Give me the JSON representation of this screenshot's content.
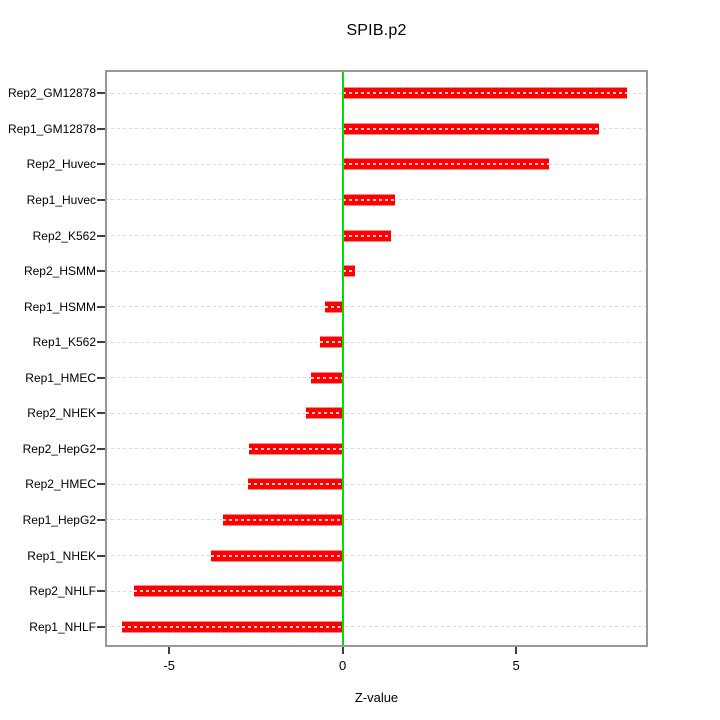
{
  "chart_data": {
    "type": "bar",
    "orientation": "horizontal",
    "title": "SPIB.p2",
    "xlabel": "Z-value",
    "ylabel": "",
    "categories": [
      "Rep2_GM12878",
      "Rep1_GM12878",
      "Rep2_Huvec",
      "Rep1_Huvec",
      "Rep2_K562",
      "Rep2_HSMM",
      "Rep1_HSMM",
      "Rep1_K562",
      "Rep1_HMEC",
      "Rep2_NHEK",
      "Rep2_HepG2",
      "Rep2_HMEC",
      "Rep1_HepG2",
      "Rep1_NHEK",
      "Rep2_NHLF",
      "Rep1_NHLF"
    ],
    "values": [
      8.2,
      7.4,
      5.95,
      1.5,
      1.4,
      0.35,
      -0.5,
      -0.65,
      -0.9,
      -1.05,
      -2.7,
      -2.72,
      -3.45,
      -3.8,
      -6.0,
      -6.35
    ],
    "xticks": [
      -5,
      0,
      5
    ],
    "xlim": [
      -6.85,
      8.8
    ],
    "grid": true,
    "legend": "none",
    "bar_color": "#ff0000",
    "bar_edge_color": "#ff8a8a",
    "zero_line_color": "#00e100",
    "gridline_color": "#d9d9d9",
    "box_color": "#989898"
  }
}
